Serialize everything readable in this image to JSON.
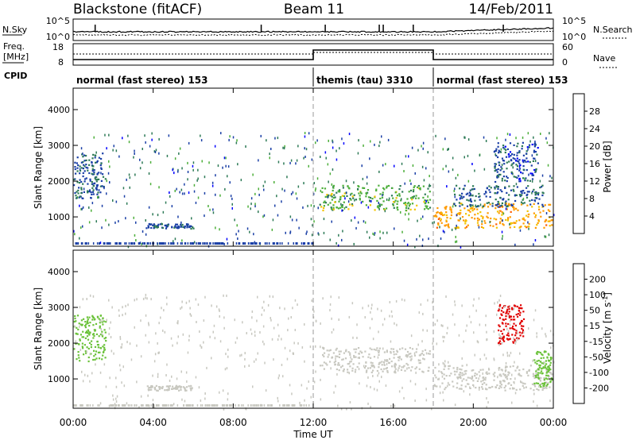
{
  "header": {
    "station": "Blackstone (fitACF)",
    "beam": "Beam 11",
    "date": "14/Feb/2011"
  },
  "status_panels": {
    "nsky_label": "N.Sky",
    "nsearch_label": "N.Search",
    "freq_label_line1": "Freq.",
    "freq_label_line2": "[MHz]",
    "nave_label": "Nave",
    "cpid_label": "CPID",
    "noise_left_ticks": [
      "10^5",
      "10^0"
    ],
    "noise_right_ticks": [
      "10^5",
      "10^0"
    ],
    "freq_left_ticks": [
      "18",
      "8"
    ],
    "nave_right_ticks": [
      "60",
      "0"
    ],
    "cpid_segments": [
      {
        "label": "normal (fast stereo) 153",
        "start_h": 0,
        "end_h": 12
      },
      {
        "label": "themis (tau) 3310",
        "start_h": 12,
        "end_h": 18
      },
      {
        "label": "normal (fast stereo) 153",
        "start_h": 18,
        "end_h": 24
      }
    ]
  },
  "x_axis": {
    "title": "Time UT",
    "tick_labels": [
      "00:00",
      "04:00",
      "08:00",
      "12:00",
      "16:00",
      "20:00",
      "00:00"
    ],
    "tick_hours": [
      0,
      4,
      8,
      12,
      16,
      20,
      24
    ],
    "range_h": [
      0,
      24
    ]
  },
  "power_panel": {
    "ylabel": "Slant Range [km]",
    "y_ticks": [
      "1000",
      "2000",
      "3000",
      "4000"
    ],
    "colorbar_title": "Power [dB]",
    "colorbar_ticks": [
      "4",
      "8",
      "12",
      "16",
      "20",
      "24",
      "28"
    ],
    "colors": [
      "#0000ff",
      "#1a3fa6",
      "#2d7a56",
      "#4caf3a",
      "#f2c400",
      "#ff9a00",
      "#ff5a00",
      "#ff0000"
    ]
  },
  "velocity_panel": {
    "ylabel": "Slant Range [km]",
    "y_ticks": [
      "1000",
      "2000",
      "3000",
      "4000"
    ],
    "colorbar_title": "Velocity [m s",
    "colorbar_title_sup": "-1",
    "colorbar_title_end": "]",
    "colorbar_ticks": [
      "200",
      "100",
      "50",
      "15",
      "-15",
      "-50",
      "-100",
      "-200"
    ],
    "colors": [
      "#1f3fb0",
      "#2a7a4f",
      "#6bc23a",
      "#c8c8c0",
      "#c8c8c0",
      "#ffb000",
      "#ff7a00",
      "#e00000",
      "#e00000"
    ]
  },
  "chart_data": {
    "type": "heatmap",
    "x_range_h": [
      0,
      24
    ],
    "y_range_km": [
      180,
      4600
    ],
    "power_scale_db": [
      0,
      30
    ],
    "velocity_scale_ms": [
      -250,
      250
    ],
    "cpid_change_hours": [
      12,
      18
    ],
    "power_clusters": [
      {
        "t0": 0.0,
        "t1": 1.6,
        "r0": 1500,
        "r1": 2800,
        "value": 7
      },
      {
        "t0": 3.6,
        "t1": 6.0,
        "r0": 690,
        "r1": 830,
        "value": 7
      },
      {
        "t0": 12.3,
        "t1": 17.8,
        "r0": 1200,
        "r1": 1900,
        "value": 13
      },
      {
        "t0": 18.0,
        "t1": 23.9,
        "r0": 700,
        "r1": 1400,
        "value": 20
      },
      {
        "t0": 19.0,
        "t1": 23.5,
        "r0": 1300,
        "r1": 1900,
        "value": 7
      },
      {
        "t0": 21.0,
        "t1": 23.2,
        "r0": 2000,
        "r1": 3100,
        "value": 6
      }
    ],
    "velocity_clusters": [
      {
        "t0": 0.0,
        "t1": 1.6,
        "r0": 1500,
        "r1": 2800,
        "value": 30
      },
      {
        "t0": 3.6,
        "t1": 6.0,
        "r0": 690,
        "r1": 830,
        "value": 5
      },
      {
        "t0": 12.3,
        "t1": 17.8,
        "r0": 1200,
        "r1": 1900,
        "value": 0
      },
      {
        "t0": 18.0,
        "t1": 23.9,
        "r0": 700,
        "r1": 1400,
        "value": 0
      },
      {
        "t0": 21.2,
        "t1": 22.5,
        "r0": 2000,
        "r1": 3100,
        "value": -200
      },
      {
        "t0": 23.0,
        "t1": 23.9,
        "r0": 800,
        "r1": 1800,
        "value": 60
      }
    ]
  }
}
